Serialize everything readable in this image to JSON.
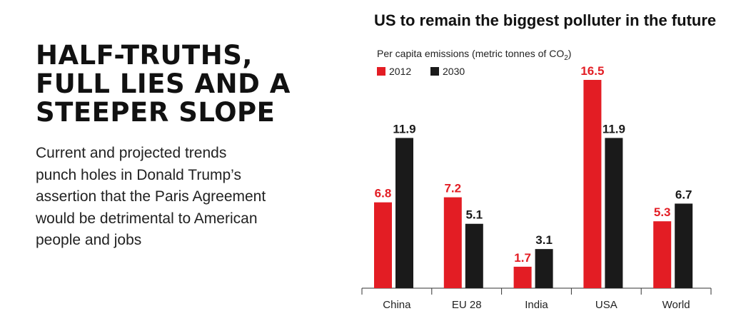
{
  "article": {
    "headline_lines": [
      "HALF-TRUTHS,",
      "FULL LIES AND A",
      "STEEPER SLOPE"
    ],
    "intro_lines": [
      "Current and projected trends",
      "punch holes in Donald Trump’s",
      "assertion that the Paris Agreement",
      "would be detrimental to American",
      "people and jobs"
    ]
  },
  "colors": {
    "series_2012": "#e31d24",
    "series_2030": "#1a1a1a",
    "axis": "#333333"
  },
  "chart_data": {
    "type": "bar",
    "title": "US to remain the biggest polluter in the future",
    "subtitle_prefix": "Per capita emissions (metric tonnes of CO",
    "subtitle_sub": "2",
    "subtitle_suffix": ")",
    "categories": [
      "China",
      "EU 28",
      "India",
      "USA",
      "World"
    ],
    "series": [
      {
        "name": "2012",
        "values": [
          6.8,
          7.2,
          1.7,
          16.5,
          5.3
        ]
      },
      {
        "name": "2030",
        "values": [
          11.9,
          5.1,
          3.1,
          11.9,
          6.7
        ]
      }
    ],
    "legend_position": "top-left",
    "grid": false,
    "ylim": [
      0,
      16.5
    ]
  }
}
